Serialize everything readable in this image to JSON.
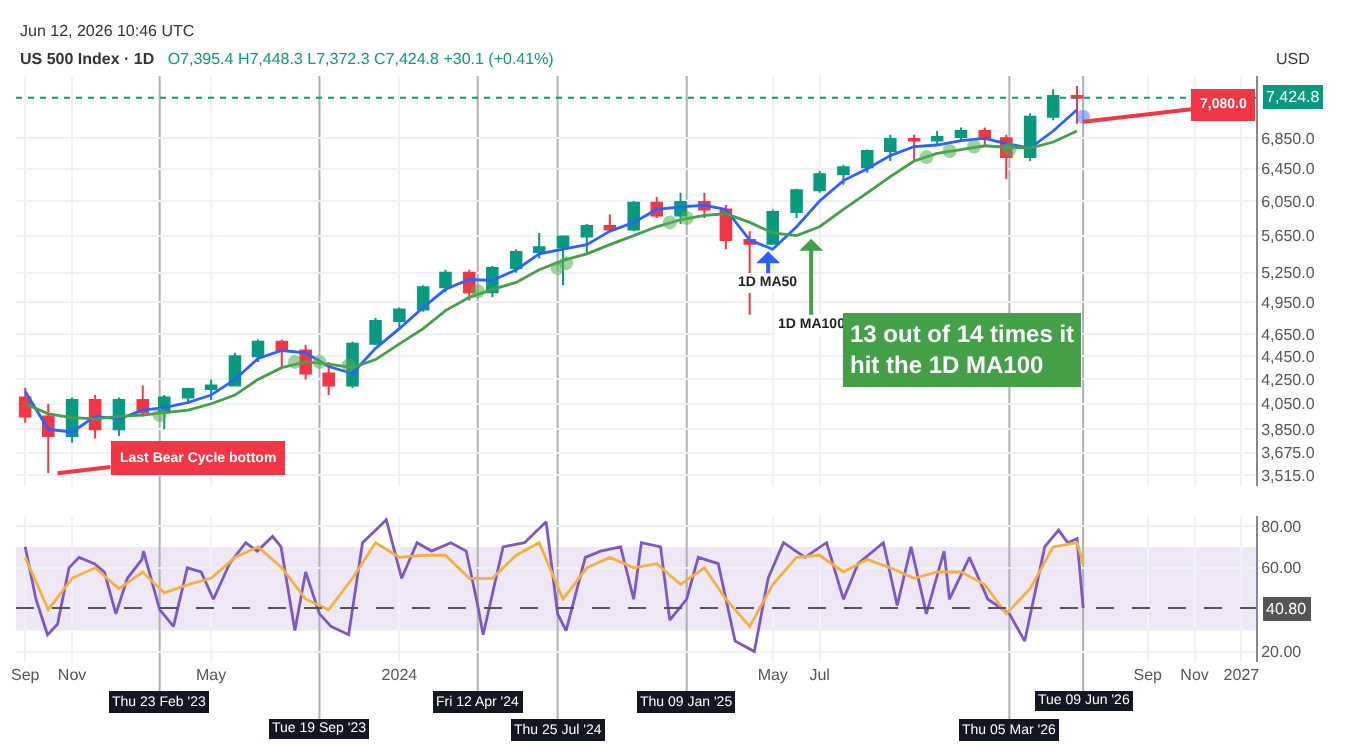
{
  "chart_data": [
    {
      "type": "candlestick",
      "title": "US 500 Index · 1D",
      "subtitle": "O7,395.4 H7,448.3 L7,372.3 C7,424.8 +30.1 (+0.41%)",
      "ylabel": "USD",
      "log": true,
      "grid": true,
      "tick_labels": "y",
      "x": [
        "2022-09",
        "2022-10",
        "2022-11",
        "2022-12",
        "2023-01",
        "2023-02",
        "2023-03",
        "2023-04",
        "2023-05",
        "2023-06",
        "2023-07",
        "2023-08",
        "2023-09",
        "2023-10",
        "2023-11",
        "2023-12",
        "2024-01",
        "2024-02",
        "2024-03",
        "2024-04",
        "2024-05",
        "2024-06",
        "2024-07",
        "2024-08",
        "2024-09",
        "2024-10",
        "2024-11",
        "2024-12",
        "2025-01",
        "2025-02",
        "2025-03",
        "2025-04",
        "2025-05",
        "2025-06",
        "2025-07",
        "2025-08",
        "2025-09",
        "2025-10",
        "2025-11",
        "2025-12",
        "2026-01",
        "2026-02",
        "2026-03",
        "2026-04",
        "2026-05",
        "2026-06"
      ],
      "ohlc": [
        [
          4100,
          4180,
          3900,
          3950
        ],
        [
          3950,
          4050,
          3530,
          3800
        ],
        [
          3800,
          4100,
          3750,
          4080
        ],
        [
          4080,
          4120,
          3780,
          3850
        ],
        [
          3850,
          4100,
          3800,
          4080
        ],
        [
          4080,
          4200,
          3950,
          3980
        ],
        [
          3980,
          4120,
          3850,
          4100
        ],
        [
          4100,
          4180,
          4050,
          4170
        ],
        [
          4170,
          4250,
          4080,
          4200
        ],
        [
          4200,
          4480,
          4200,
          4450
        ],
        [
          4450,
          4600,
          4400,
          4580
        ],
        [
          4580,
          4600,
          4350,
          4500
        ],
        [
          4500,
          4550,
          4250,
          4300
        ],
        [
          4300,
          4400,
          4120,
          4200
        ],
        [
          4200,
          4580,
          4180,
          4560
        ],
        [
          4560,
          4800,
          4550,
          4770
        ],
        [
          4770,
          4900,
          4700,
          4880
        ],
        [
          4880,
          5120,
          4860,
          5100
        ],
        [
          5100,
          5280,
          5050,
          5250
        ],
        [
          5250,
          5280,
          4970,
          5050
        ],
        [
          5050,
          5320,
          5000,
          5300
        ],
        [
          5300,
          5500,
          5250,
          5470
        ],
        [
          5470,
          5680,
          5400,
          5520
        ],
        [
          5520,
          5650,
          5120,
          5640
        ],
        [
          5640,
          5780,
          5450,
          5760
        ],
        [
          5760,
          5890,
          5700,
          5720
        ],
        [
          5720,
          6050,
          5700,
          6030
        ],
        [
          6030,
          6100,
          5850,
          5880
        ],
        [
          5880,
          6150,
          5780,
          6040
        ],
        [
          6040,
          6150,
          5850,
          5950
        ],
        [
          5950,
          6000,
          5500,
          5600
        ],
        [
          5600,
          5700,
          4830,
          5560
        ],
        [
          5560,
          5950,
          5550,
          5920
        ],
        [
          5920,
          6200,
          5850,
          6180
        ],
        [
          6180,
          6420,
          6150,
          6380
        ],
        [
          6380,
          6500,
          6250,
          6470
        ],
        [
          6470,
          6700,
          6400,
          6680
        ],
        [
          6680,
          6900,
          6550,
          6840
        ],
        [
          6840,
          6900,
          6550,
          6820
        ],
        [
          6820,
          6950,
          6750,
          6870
        ],
        [
          6870,
          7000,
          6800,
          6950
        ],
        [
          6950,
          7000,
          6750,
          6850
        ],
        [
          6850,
          6900,
          6320,
          6600
        ],
        [
          6600,
          7200,
          6550,
          7150
        ],
        [
          7150,
          7550,
          7100,
          7450
        ],
        [
          7450,
          7600,
          7050,
          7424.8
        ]
      ],
      "colors": [
        "#f23645",
        "#f23645",
        "#089981",
        "#f23645",
        "#089981",
        "#f23645",
        "#089981",
        "#089981",
        "#089981",
        "#089981",
        "#089981",
        "#f23645",
        "#f23645",
        "#f23645",
        "#089981",
        "#089981",
        "#089981",
        "#089981",
        "#089981",
        "#f23645",
        "#089981",
        "#089981",
        "#089981",
        "#089981",
        "#089981",
        "#f23645",
        "#089981",
        "#f23645",
        "#089981",
        "#f23645",
        "#f23645",
        "#f23645",
        "#089981",
        "#089981",
        "#089981",
        "#089981",
        "#089981",
        "#089981",
        "#f23645",
        "#089981",
        "#089981",
        "#f23645",
        "#f23645",
        "#089981",
        "#089981",
        "#f23645"
      ],
      "series": [
        {
          "type": "line",
          "color": "#2962ff",
          "x": [
            "2022-09",
            "2022-10",
            "2022-11",
            "2022-12",
            "2023-01",
            "2023-02",
            "2023-03",
            "2023-04",
            "2023-05",
            "2023-06",
            "2023-07",
            "2023-08",
            "2023-09",
            "2023-10",
            "2023-11",
            "2023-12",
            "2024-01",
            "2024-02",
            "2024-03",
            "2024-04",
            "2024-05",
            "2024-06",
            "2024-07",
            "2024-08",
            "2024-09",
            "2024-10",
            "2024-11",
            "2024-12",
            "2025-01",
            "2025-02",
            "2025-03",
            "2025-04",
            "2025-05",
            "2025-06",
            "2025-07",
            "2025-08",
            "2025-09",
            "2025-10",
            "2025-11",
            "2025-12",
            "2026-01",
            "2026-02",
            "2026-03",
            "2026-04",
            "2026-05",
            "2026-06"
          ],
          "values": [
            4150,
            3850,
            3830,
            3950,
            3930,
            4000,
            4020,
            4060,
            4120,
            4250,
            4430,
            4500,
            4480,
            4360,
            4300,
            4520,
            4700,
            4900,
            5080,
            5180,
            5170,
            5280,
            5450,
            5500,
            5550,
            5700,
            5800,
            5950,
            5980,
            6000,
            5950,
            5600,
            5500,
            5750,
            6050,
            6300,
            6450,
            6620,
            6740,
            6760,
            6820,
            6850,
            6780,
            6720,
            6950,
            7250
          ]
        },
        {
          "type": "line",
          "color": "#43a047",
          "x": [
            "2022-09",
            "2022-10",
            "2022-11",
            "2022-12",
            "2023-01",
            "2023-02",
            "2023-03",
            "2023-04",
            "2023-05",
            "2023-06",
            "2023-07",
            "2023-08",
            "2023-09",
            "2023-10",
            "2023-11",
            "2023-12",
            "2024-01",
            "2024-02",
            "2024-03",
            "2024-04",
            "2024-05",
            "2024-06",
            "2024-07",
            "2024-08",
            "2024-09",
            "2024-10",
            "2024-11",
            "2024-12",
            "2025-01",
            "2025-02",
            "2025-03",
            "2025-04",
            "2025-05",
            "2025-06",
            "2025-07",
            "2025-08",
            "2025-09",
            "2025-10",
            "2025-11",
            "2025-12",
            "2026-01",
            "2026-02",
            "2026-03",
            "2026-04",
            "2026-05",
            "2026-06"
          ],
          "values": [
            4050,
            3970,
            3940,
            3930,
            3950,
            3960,
            3980,
            4000,
            4050,
            4120,
            4250,
            4350,
            4400,
            4380,
            4350,
            4420,
            4560,
            4700,
            4870,
            5000,
            5080,
            5150,
            5280,
            5380,
            5450,
            5550,
            5650,
            5750,
            5830,
            5880,
            5900,
            5800,
            5680,
            5650,
            5750,
            5950,
            6150,
            6350,
            6550,
            6650,
            6700,
            6750,
            6730,
            6720,
            6800,
            6950
          ]
        },
        {
          "type": "scatter",
          "marker": "circle",
          "x": [
            "2023-02-23",
            "2023-08-18",
            "2023-09-19",
            "2023-10-27",
            "2024-04-12",
            "2024-07-25",
            "2024-08-05",
            "2024-12-18",
            "2025-01-09",
            "2025-11-17",
            "2025-12-17",
            "2026-01-18",
            "2026-03-05",
            "2026-06-09"
          ],
          "values": [
            3960,
            4400,
            4400,
            4370,
            5060,
            5300,
            5350,
            5800,
            5850,
            6600,
            6680,
            6740,
            6700,
            7150
          ],
          "colors": [
            "#4caf50",
            "#4caf50",
            "#4caf50",
            "#4caf50",
            "#4caf50",
            "#4caf50",
            "#4caf50",
            "#4caf50",
            "#4caf50",
            "#4caf50",
            "#4caf50",
            "#4caf50",
            "#4caf50",
            "#5b7cfa"
          ]
        }
      ],
      "xlim": [
        "2022-08-20",
        "2027-01-20"
      ],
      "xticks": [
        {
          "value": "2022-09-01",
          "label": null
        },
        {
          "value": "2022-11-01",
          "label": null
        },
        {
          "value": "2023-05-01",
          "label": null
        },
        {
          "value": "2024-01-01",
          "label": null
        },
        {
          "value": "2025-05-01",
          "label": null
        },
        {
          "value": "2025-07-01",
          "label": null
        },
        {
          "value": "2026-09-01",
          "label": null
        },
        {
          "value": "2026-11-01",
          "label": null
        },
        {
          "value": "2027-01-01",
          "label": null
        }
      ],
      "ylim": [
        3440,
        7750
      ],
      "yticks": [
        {
          "value": 3515,
          "label": "3,515.0"
        },
        {
          "value": 3675,
          "label": "3,675.0"
        },
        {
          "value": 3850,
          "label": "3,850.0"
        },
        {
          "value": 4050,
          "label": "4,050.0"
        },
        {
          "value": 4250,
          "label": "4,250.0"
        },
        {
          "value": 4450,
          "label": "4,450.0"
        },
        {
          "value": 4650,
          "label": "4,650.0"
        },
        {
          "value": 4950,
          "label": "4,950.0"
        },
        {
          "value": 5250,
          "label": "5,250.0"
        },
        {
          "value": 5650,
          "label": "5,650.0"
        },
        {
          "value": 6050,
          "label": "6,050.0"
        },
        {
          "value": 6450,
          "label": "6,450.0"
        },
        {
          "value": 6850,
          "label": "6,850.0"
        }
      ],
      "ref_lines": [
        {
          "axis": "y",
          "value": 7424.8,
          "label": "7,424.8",
          "color": "#089981",
          "line_style": "dotted"
        }
      ],
      "annotations": [
        "Jun 12, 2026 10:46 UTC",
        {
          "text": "Last Bear Cycle bottom",
          "x": "2022-10-13",
          "y": 3530
        },
        {
          "text": "1D MA50",
          "x": "2025-04-25",
          "y": 5520
        },
        {
          "text": "1D MA100",
          "x": "2025-06-20",
          "y": 5660
        },
        "13 out of 14 times it hit the 1D MA100",
        {
          "text": "7,080.0",
          "x": "2026-06-09",
          "y": 7080
        }
      ]
    },
    {
      "type": "line",
      "grid": true,
      "series": [
        {
          "color": "#7e57c2",
          "x": [
            "2022-09-01",
            "2022-09-15",
            "2022-09-30",
            "2022-10-13",
            "2022-10-28",
            "2022-11-10",
            "2022-11-30",
            "2022-12-13",
            "2022-12-28",
            "2023-01-12",
            "2023-01-31",
            "2023-02-02",
            "2023-02-23",
            "2023-03-13",
            "2023-03-31",
            "2023-04-18",
            "2023-05-04",
            "2023-05-25",
            "2023-06-15",
            "2023-06-30",
            "2023-07-20",
            "2023-07-31",
            "2023-08-18",
            "2023-09-01",
            "2023-09-19",
            "2023-10-04",
            "2023-10-27",
            "2023-11-14",
            "2023-12-01",
            "2023-12-15",
            "2024-01-04",
            "2024-01-24",
            "2024-02-12",
            "2024-03-08",
            "2024-03-28",
            "2024-04-12",
            "2024-04-19",
            "2024-05-15",
            "2024-06-12",
            "2024-07-10",
            "2024-07-25",
            "2024-08-05",
            "2024-08-30",
            "2024-09-19",
            "2024-10-15",
            "2024-11-01",
            "2024-11-11",
            "2024-12-06",
            "2024-12-18",
            "2025-01-09",
            "2025-01-24",
            "2025-02-19",
            "2025-03-13",
            "2025-04-07",
            "2025-04-25",
            "2025-05-15",
            "2025-06-12",
            "2025-07-10",
            "2025-08-01",
            "2025-08-20",
            "2025-09-22",
            "2025-10-10",
            "2025-10-28",
            "2025-11-17",
            "2025-12-10",
            "2025-12-17",
            "2026-01-12",
            "2026-02-05",
            "2026-03-05",
            "2026-03-25",
            "2026-04-20",
            "2026-05-08",
            "2026-05-20",
            "2026-06-01",
            "2026-06-09"
          ],
          "values": [
            70,
            45,
            28,
            33,
            60,
            65,
            62,
            58,
            38,
            55,
            64,
            68,
            40,
            32,
            60,
            58,
            45,
            62,
            72,
            68,
            75,
            70,
            30,
            58,
            38,
            32,
            28,
            72,
            78,
            83,
            55,
            72,
            68,
            72,
            68,
            42,
            28,
            70,
            72,
            82,
            38,
            30,
            65,
            68,
            70,
            45,
            72,
            70,
            35,
            45,
            65,
            62,
            25,
            20,
            55,
            72,
            65,
            72,
            45,
            62,
            72,
            42,
            70,
            38,
            68,
            45,
            65,
            45,
            38,
            25,
            70,
            78,
            72,
            74,
            40.8
          ]
        },
        {
          "color": "#f5b041",
          "x": [
            "2022-09-01",
            "2022-10-01",
            "2022-11-01",
            "2022-12-01",
            "2023-01-01",
            "2023-02-01",
            "2023-03-01",
            "2023-04-01",
            "2023-05-01",
            "2023-06-01",
            "2023-07-01",
            "2023-08-01",
            "2023-09-01",
            "2023-10-01",
            "2023-11-01",
            "2023-12-01",
            "2024-01-01",
            "2024-02-01",
            "2024-03-01",
            "2024-04-01",
            "2024-05-01",
            "2024-06-01",
            "2024-07-01",
            "2024-08-01",
            "2024-09-01",
            "2024-10-01",
            "2024-11-01",
            "2024-12-01",
            "2025-01-01",
            "2025-02-01",
            "2025-03-01",
            "2025-04-01",
            "2025-05-01",
            "2025-06-01",
            "2025-07-01",
            "2025-08-01",
            "2025-09-01",
            "2025-10-01",
            "2025-11-01",
            "2025-12-01",
            "2026-01-01",
            "2026-02-01",
            "2026-03-01",
            "2026-04-01",
            "2026-05-01",
            "2026-06-01",
            "2026-06-09"
          ],
          "values": [
            65,
            40,
            55,
            60,
            50,
            58,
            48,
            52,
            55,
            65,
            70,
            60,
            45,
            40,
            55,
            72,
            65,
            66,
            66,
            55,
            55,
            66,
            72,
            45,
            60,
            65,
            60,
            62,
            52,
            60,
            45,
            32,
            52,
            65,
            66,
            58,
            64,
            60,
            55,
            58,
            58,
            52,
            38,
            50,
            70,
            72,
            62
          ]
        }
      ],
      "xlim": [
        "2022-08-20",
        "2027-01-20"
      ],
      "xticks": [
        {
          "value": "2022-09-01",
          "label": "Sep"
        },
        {
          "value": "2022-11-01",
          "label": "Nov"
        },
        {
          "value": "2023-05-01",
          "label": "May"
        },
        {
          "value": "2024-01-01",
          "label": "2024"
        },
        {
          "value": "2025-05-01",
          "label": "May"
        },
        {
          "value": "2025-07-01",
          "label": "Jul"
        },
        {
          "value": "2026-09-01",
          "label": "Sep"
        },
        {
          "value": "2026-11-01",
          "label": "Nov"
        },
        {
          "value": "2027-01-01",
          "label": "2027"
        }
      ],
      "ylim": [
        15,
        85
      ],
      "yticks": [
        {
          "value": 20,
          "label": "20.00"
        },
        {
          "value": 60,
          "label": "60.00"
        },
        {
          "value": 80,
          "label": "80.00"
        }
      ],
      "bands": [
        {
          "axis": "y",
          "from": 30,
          "to": 70,
          "color": "#ede7f6"
        }
      ],
      "ref_lines": [
        {
          "axis": "y",
          "value": 40.8,
          "label": "40.80",
          "color": "#555555",
          "line_style": "dashed"
        },
        {
          "axis": "x",
          "value": "2023-02-23",
          "label": "Thu 23 Feb '23"
        },
        {
          "axis": "x",
          "value": "2023-09-19",
          "label": "Tue 19 Sep '23"
        },
        {
          "axis": "x",
          "value": "2024-04-12",
          "label": "Fri 12 Apr '24"
        },
        {
          "axis": "x",
          "value": "2024-07-25",
          "label": "Thu 25 Jul '24"
        },
        {
          "axis": "x",
          "value": "2025-01-09",
          "label": "Thu 09 Jan '25"
        },
        {
          "axis": "x",
          "value": "2026-03-05",
          "label": "Thu 05 Mar '26"
        },
        {
          "axis": "x",
          "value": "2026-06-09",
          "label": "Tue 09 Jun '26"
        }
      ]
    }
  ]
}
